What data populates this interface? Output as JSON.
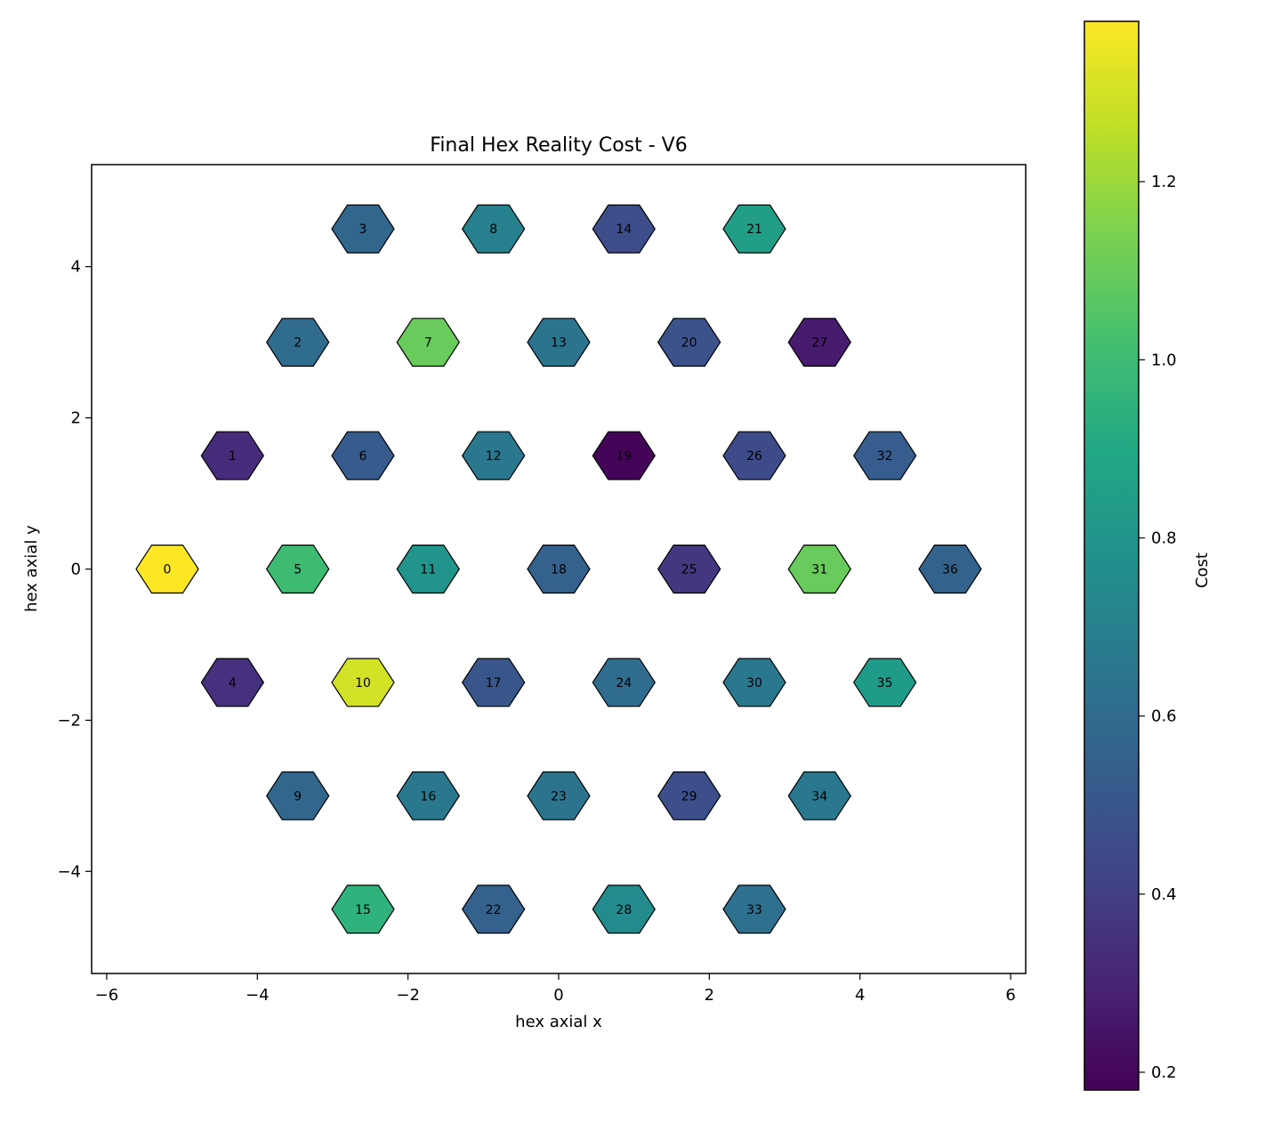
{
  "chart_data": {
    "type": "scatter",
    "title": "Final Hex Reality Cost - V6",
    "xlabel": "hex axial x",
    "ylabel": "hex axial y",
    "xlim": [
      -6.2,
      6.2
    ],
    "ylim": [
      -5.35,
      5.35
    ],
    "x_ticks": [
      -6,
      -4,
      -2,
      0,
      2,
      4,
      6
    ],
    "y_ticks": [
      -4,
      -2,
      0,
      2,
      4
    ],
    "grid": false,
    "marker": "hexagon",
    "colormap": "viridis",
    "colorbar": {
      "label": "Cost",
      "range": [
        0.18,
        1.38
      ],
      "ticks": [
        0.2,
        0.4,
        0.6,
        0.8,
        1.0,
        1.2
      ]
    },
    "points": [
      {
        "id": "0",
        "x": -5.196,
        "y": 0.0,
        "cost": 1.38
      },
      {
        "id": "1",
        "x": -4.33,
        "y": 1.5,
        "cost": 0.33
      },
      {
        "id": "2",
        "x": -3.464,
        "y": 3.0,
        "cost": 0.6
      },
      {
        "id": "3",
        "x": -2.598,
        "y": 4.5,
        "cost": 0.58
      },
      {
        "id": "4",
        "x": -4.33,
        "y": -1.5,
        "cost": 0.35
      },
      {
        "id": "5",
        "x": -3.464,
        "y": 0.0,
        "cost": 1.0
      },
      {
        "id": "6",
        "x": -2.598,
        "y": 1.5,
        "cost": 0.52
      },
      {
        "id": "7",
        "x": -1.732,
        "y": 3.0,
        "cost": 1.1
      },
      {
        "id": "8",
        "x": -0.866,
        "y": 4.5,
        "cost": 0.7
      },
      {
        "id": "9",
        "x": -3.464,
        "y": -3.0,
        "cost": 0.58
      },
      {
        "id": "10",
        "x": -2.598,
        "y": -1.5,
        "cost": 1.3
      },
      {
        "id": "11",
        "x": -1.732,
        "y": 0.0,
        "cost": 0.8
      },
      {
        "id": "12",
        "x": -0.866,
        "y": 1.5,
        "cost": 0.66
      },
      {
        "id": "13",
        "x": 0.0,
        "y": 3.0,
        "cost": 0.64
      },
      {
        "id": "14",
        "x": 0.866,
        "y": 4.5,
        "cost": 0.46
      },
      {
        "id": "15",
        "x": -2.598,
        "y": -4.5,
        "cost": 0.95
      },
      {
        "id": "16",
        "x": -1.732,
        "y": -3.0,
        "cost": 0.66
      },
      {
        "id": "17",
        "x": -0.866,
        "y": -1.5,
        "cost": 0.5
      },
      {
        "id": "18",
        "x": 0.0,
        "y": 0.0,
        "cost": 0.55
      },
      {
        "id": "19",
        "x": 0.866,
        "y": 1.5,
        "cost": 0.19
      },
      {
        "id": "20",
        "x": 1.732,
        "y": 3.0,
        "cost": 0.48
      },
      {
        "id": "21",
        "x": 2.598,
        "y": 4.5,
        "cost": 0.85
      },
      {
        "id": "22",
        "x": -0.866,
        "y": -4.5,
        "cost": 0.55
      },
      {
        "id": "23",
        "x": 0.0,
        "y": -3.0,
        "cost": 0.64
      },
      {
        "id": "24",
        "x": 0.866,
        "y": -1.5,
        "cost": 0.6
      },
      {
        "id": "25",
        "x": 1.732,
        "y": 0.0,
        "cost": 0.37
      },
      {
        "id": "26",
        "x": 2.598,
        "y": 1.5,
        "cost": 0.45
      },
      {
        "id": "27",
        "x": 3.464,
        "y": 3.0,
        "cost": 0.27
      },
      {
        "id": "28",
        "x": 0.866,
        "y": -4.5,
        "cost": 0.75
      },
      {
        "id": "29",
        "x": 1.732,
        "y": -3.0,
        "cost": 0.47
      },
      {
        "id": "30",
        "x": 2.598,
        "y": -1.5,
        "cost": 0.66
      },
      {
        "id": "31",
        "x": 3.464,
        "y": 0.0,
        "cost": 1.1
      },
      {
        "id": "32",
        "x": 4.33,
        "y": 1.5,
        "cost": 0.53
      },
      {
        "id": "33",
        "x": 2.598,
        "y": -4.5,
        "cost": 0.62
      },
      {
        "id": "34",
        "x": 3.464,
        "y": -3.0,
        "cost": 0.66
      },
      {
        "id": "35",
        "x": 4.33,
        "y": -1.5,
        "cost": 0.83
      },
      {
        "id": "36",
        "x": 5.196,
        "y": 0.0,
        "cost": 0.56
      }
    ]
  }
}
